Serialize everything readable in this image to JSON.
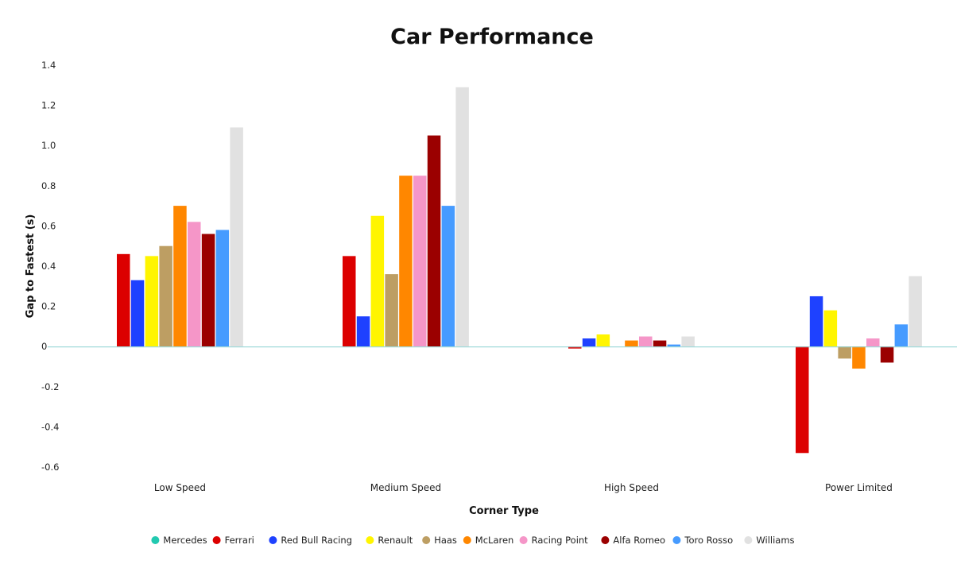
{
  "chart_data": {
    "type": "bar",
    "title": "Car Performance",
    "xlabel": "Corner Type",
    "ylabel": "Gap to Fastest (s)",
    "ylim": [
      -0.6,
      1.4
    ],
    "yticks": [
      1.4,
      1.2,
      1.0,
      0.8,
      0.6,
      0.4,
      0.2,
      0,
      -0.2,
      -0.4,
      -0.6
    ],
    "ytick_labels": [
      "1.4",
      "1.2",
      "1.0",
      "0.8",
      "0.6",
      "0.4",
      "0.2",
      "0",
      "-0.2",
      "-0.4",
      "-0.6"
    ],
    "grid": false,
    "legend_position": "bottom",
    "categories": [
      "Low Speed",
      "Medium Speed",
      "High Speed",
      "Power Limited"
    ],
    "series": [
      {
        "name": "Mercedes",
        "color": "#22c9b0",
        "values": [
          0,
          0,
          0,
          0
        ]
      },
      {
        "name": "Ferrari",
        "color": "#dc0000",
        "values": [
          0.46,
          0.45,
          -0.01,
          -0.53
        ]
      },
      {
        "name": "Red Bull Racing",
        "color": "#1e41ff",
        "values": [
          0.33,
          0.15,
          0.04,
          0.25
        ]
      },
      {
        "name": "Renault",
        "color": "#fff500",
        "values": [
          0.45,
          0.65,
          0.06,
          0.18
        ]
      },
      {
        "name": "Haas",
        "color": "#bd9e63",
        "values": [
          0.5,
          0.36,
          0,
          -0.06
        ]
      },
      {
        "name": "McLaren",
        "color": "#ff8700",
        "values": [
          0.7,
          0.85,
          0.03,
          -0.11
        ]
      },
      {
        "name": "Racing Point",
        "color": "#f596c8",
        "values": [
          0.62,
          0.85,
          0.05,
          0.04
        ]
      },
      {
        "name": "Alfa Romeo",
        "color": "#9b0000",
        "values": [
          0.56,
          1.05,
          0.03,
          -0.08
        ]
      },
      {
        "name": "Toro Rosso",
        "color": "#469bff",
        "values": [
          0.58,
          0.7,
          0.01,
          0.11
        ]
      },
      {
        "name": "Williams",
        "color": "#e1e1e1",
        "values": [
          1.09,
          1.29,
          0.05,
          0.35
        ]
      }
    ],
    "zero_line_color": "#8fd3d3"
  }
}
